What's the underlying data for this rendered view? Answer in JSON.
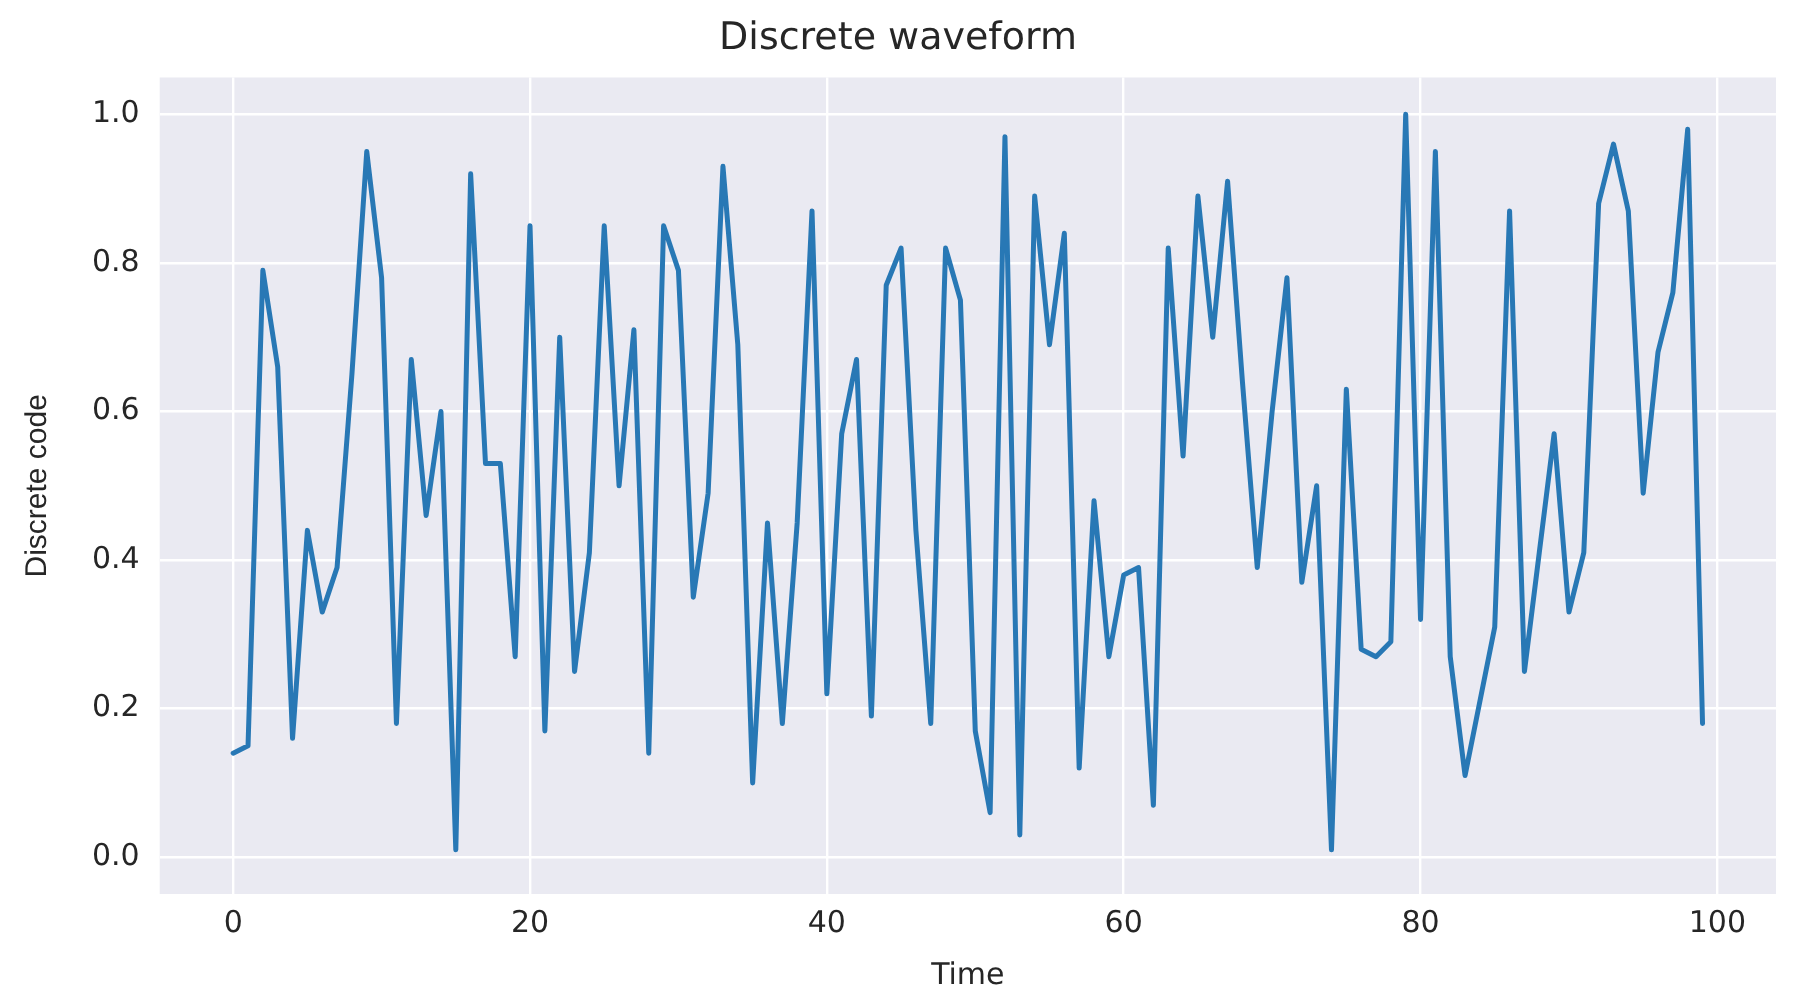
{
  "chart_data": {
    "type": "line",
    "title": "Discrete waveform",
    "xlabel": "Time",
    "ylabel": "Discrete code",
    "x": [
      0,
      1,
      2,
      3,
      4,
      5,
      6,
      7,
      8,
      9,
      10,
      11,
      12,
      13,
      14,
      15,
      16,
      17,
      18,
      19,
      20,
      21,
      22,
      23,
      24,
      25,
      26,
      27,
      28,
      29,
      30,
      31,
      32,
      33,
      34,
      35,
      36,
      37,
      38,
      39,
      40,
      41,
      42,
      43,
      44,
      45,
      46,
      47,
      48,
      49,
      50,
      51,
      52,
      53,
      54,
      55,
      56,
      57,
      58,
      59,
      60,
      61,
      62,
      63,
      64,
      65,
      66,
      67,
      68,
      69,
      70,
      71,
      72,
      73,
      74,
      75,
      76,
      77,
      78,
      79,
      80,
      81,
      82,
      83,
      84,
      85,
      86,
      87,
      88,
      89,
      90,
      91,
      92,
      93,
      94,
      95,
      96,
      97,
      98,
      99
    ],
    "series": [
      {
        "color": "#2878b5",
        "values": [
          0.14,
          0.15,
          0.79,
          0.66,
          0.16,
          0.44,
          0.33,
          0.39,
          0.65,
          0.95,
          0.78,
          0.18,
          0.67,
          0.46,
          0.6,
          0.01,
          0.92,
          0.53,
          0.53,
          0.27,
          0.85,
          0.17,
          0.7,
          0.25,
          0.41,
          0.85,
          0.5,
          0.71,
          0.14,
          0.85,
          0.79,
          0.35,
          0.49,
          0.93,
          0.69,
          0.1,
          0.45,
          0.18,
          0.45,
          0.87,
          0.22,
          0.57,
          0.67,
          0.19,
          0.77,
          0.82,
          0.44,
          0.18,
          0.82,
          0.75,
          0.17,
          0.06,
          0.97,
          0.03,
          0.89,
          0.69,
          0.84,
          0.12,
          0.48,
          0.27,
          0.38,
          0.39,
          0.07,
          0.82,
          0.54,
          0.89,
          0.7,
          0.91,
          0.64,
          0.39,
          0.6,
          0.78,
          0.37,
          0.5,
          0.01,
          0.63,
          0.28,
          0.27,
          0.29,
          1.0,
          0.32,
          0.95,
          0.27,
          0.11,
          0.21,
          0.31,
          0.87,
          0.25,
          0.41,
          0.57,
          0.33,
          0.41,
          0.88,
          0.96,
          0.87,
          0.49,
          0.68,
          0.76,
          0.98,
          0.18
        ]
      }
    ],
    "xlim": [
      -4.95,
      103.95
    ],
    "xticks": [
      0,
      20,
      40,
      60,
      80,
      100
    ],
    "ylim": [
      -0.0495,
      1.0495
    ],
    "yticks": [
      {
        "value": 0,
        "label": "0.0"
      },
      {
        "value": 0.2,
        "label": "0.2"
      },
      {
        "value": 0.4,
        "label": "0.4"
      },
      {
        "value": 0.6,
        "label": "0.6"
      },
      {
        "value": 0.8,
        "label": "0.8"
      },
      {
        "value": 1,
        "label": "1.0"
      }
    ],
    "grid": true,
    "legend": false,
    "marker": "none",
    "line_style": "solid"
  }
}
